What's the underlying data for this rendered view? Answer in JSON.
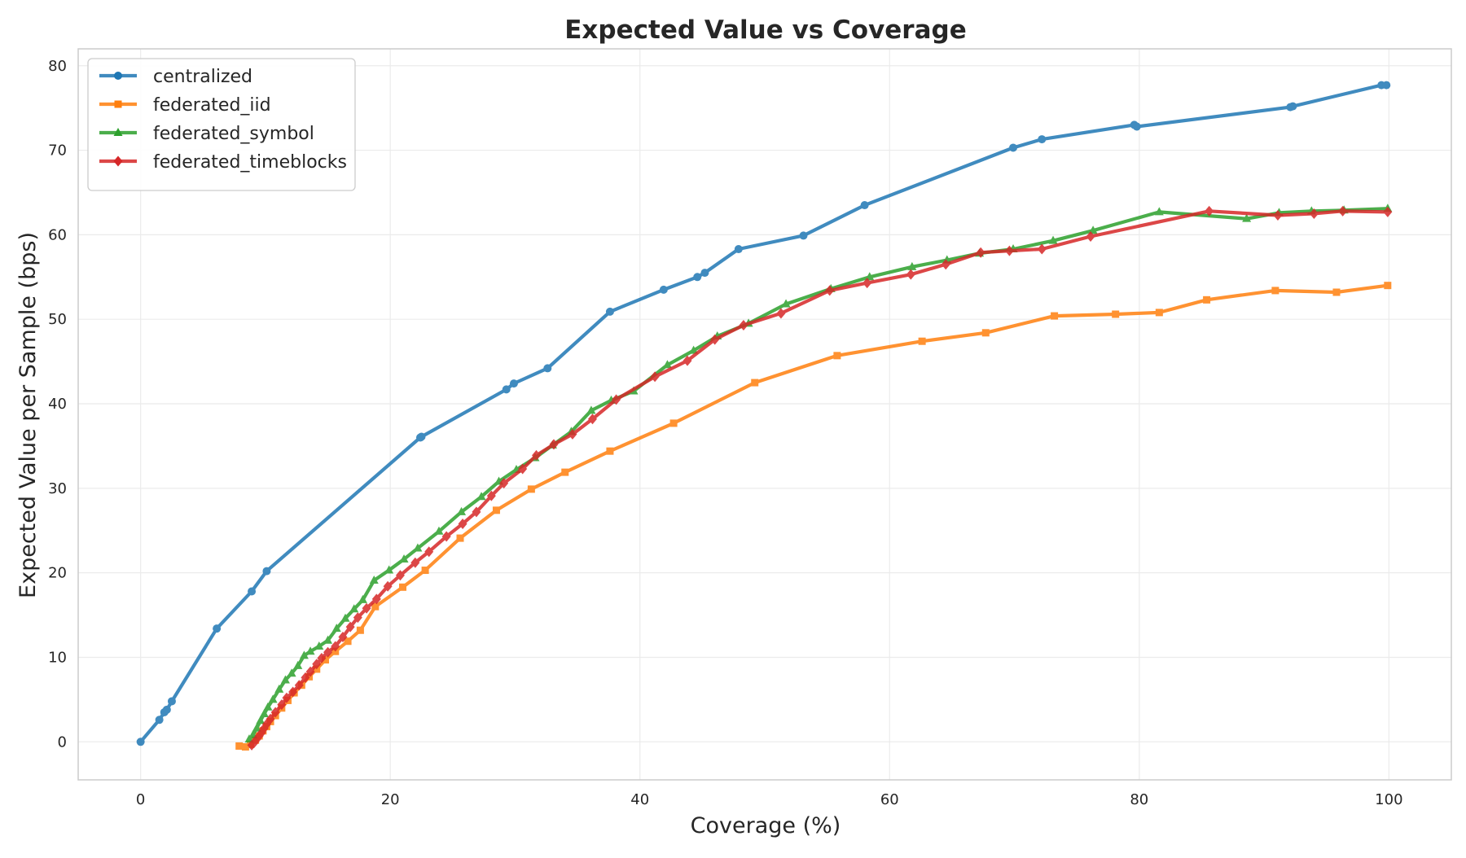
{
  "chart_data": {
    "type": "line",
    "title": "Expected Value vs Coverage",
    "xlabel": "Coverage (%)",
    "ylabel": "Expected Value per Sample (bps)",
    "xlim": [
      -5,
      105
    ],
    "ylim": [
      -4.5,
      82
    ],
    "xticks": [
      0,
      20,
      40,
      60,
      80,
      100
    ],
    "yticks": [
      0,
      10,
      20,
      30,
      40,
      50,
      60,
      70,
      80
    ],
    "grid": true,
    "legend_position": "top-left",
    "series": [
      {
        "name": "centralized",
        "color": "#1f77b4",
        "marker": "circle",
        "x": [
          0,
          1.5,
          1.9,
          2.1,
          2.5,
          6.1,
          8.9,
          10.1,
          22.4,
          22.5,
          29.3,
          29.9,
          32.6,
          37.6,
          41.9,
          44.6,
          45.2,
          47.9,
          53.1,
          58.0,
          69.9,
          72.2,
          79.6,
          79.8,
          92.1,
          92.3,
          99.4,
          99.8
        ],
        "y": [
          0,
          2.6,
          3.5,
          3.8,
          4.8,
          13.4,
          17.8,
          20.2,
          36.0,
          36.1,
          41.7,
          42.4,
          44.2,
          50.9,
          53.5,
          55.0,
          55.5,
          58.3,
          59.9,
          63.5,
          70.3,
          71.3,
          73.0,
          72.8,
          75.1,
          75.2,
          77.7,
          77.7
        ]
      },
      {
        "name": "federated_iid",
        "color": "#ff7f0e",
        "marker": "square",
        "x": [
          7.9,
          8.4,
          8.8,
          9.2,
          9.5,
          9.8,
          10.1,
          10.4,
          10.8,
          11.3,
          11.8,
          12.3,
          12.9,
          13.5,
          14.1,
          14.8,
          15.6,
          16.6,
          17.6,
          18.8,
          21.0,
          22.8,
          25.6,
          28.5,
          31.3,
          34.0,
          37.6,
          42.7,
          49.2,
          55.8,
          62.6,
          67.7,
          73.2,
          78.1,
          81.6,
          85.4,
          90.9,
          95.8,
          99.9
        ],
        "y": [
          -0.5,
          -0.6,
          -0.3,
          0.2,
          0.7,
          1.3,
          1.8,
          2.4,
          3.1,
          4.0,
          4.9,
          5.8,
          6.7,
          7.7,
          8.6,
          9.7,
          10.7,
          11.9,
          13.2,
          16.0,
          18.3,
          20.3,
          24.1,
          27.4,
          29.9,
          31.9,
          34.4,
          37.7,
          42.5,
          45.7,
          47.4,
          48.4,
          50.4,
          50.6,
          50.8,
          52.3,
          53.4,
          53.2,
          54.0
        ]
      },
      {
        "name": "federated_symbol",
        "color": "#2ca02c",
        "marker": "triangle",
        "x": [
          8.7,
          9.0,
          9.3,
          9.6,
          9.9,
          10.2,
          10.6,
          11.1,
          11.6,
          12.1,
          12.6,
          13.1,
          13.6,
          14.3,
          15.0,
          15.7,
          16.4,
          17.1,
          17.8,
          18.7,
          19.9,
          21.1,
          22.2,
          23.9,
          25.7,
          27.3,
          28.7,
          30.1,
          31.6,
          33.0,
          34.5,
          36.1,
          37.7,
          39.5,
          42.2,
          44.3,
          46.2,
          48.7,
          51.7,
          55.3,
          58.4,
          61.8,
          64.6,
          67.2,
          69.9,
          73.1,
          76.3,
          81.6,
          88.6,
          91.2,
          93.8,
          96.4,
          99.9
        ],
        "y": [
          0.3,
          0.8,
          1.6,
          2.5,
          3.3,
          4.1,
          5.0,
          6.2,
          7.3,
          8.1,
          9.0,
          10.2,
          10.7,
          11.3,
          12.0,
          13.4,
          14.6,
          15.7,
          16.8,
          19.1,
          20.3,
          21.6,
          22.9,
          24.9,
          27.2,
          29.0,
          30.8,
          32.2,
          33.6,
          35.1,
          36.7,
          39.2,
          40.4,
          41.5,
          44.6,
          46.3,
          48.0,
          49.5,
          51.8,
          53.6,
          55.0,
          56.2,
          57.0,
          57.8,
          58.3,
          59.3,
          60.5,
          62.7,
          61.9,
          62.6,
          62.8,
          62.9,
          63.1
        ]
      },
      {
        "name": "federated_timeblocks",
        "color": "#d62728",
        "marker": "diamond",
        "x": [
          8.9,
          9.1,
          9.3,
          9.5,
          9.7,
          9.9,
          10.1,
          10.4,
          10.8,
          11.3,
          11.7,
          12.2,
          12.7,
          13.2,
          13.6,
          14.1,
          14.5,
          15.0,
          15.6,
          16.2,
          16.8,
          17.4,
          18.1,
          18.9,
          19.8,
          20.8,
          22.0,
          23.1,
          24.5,
          25.8,
          26.9,
          28.1,
          29.1,
          30.6,
          31.7,
          33.1,
          34.6,
          36.2,
          38.1,
          41.2,
          43.8,
          46.0,
          48.3,
          51.3,
          55.2,
          58.2,
          61.7,
          64.5,
          67.3,
          69.6,
          72.2,
          76.1,
          85.6,
          91.1,
          94.0,
          96.3,
          99.9
        ],
        "y": [
          -0.4,
          -0.1,
          0.3,
          0.7,
          1.1,
          1.6,
          2.1,
          2.7,
          3.5,
          4.4,
          5.2,
          5.9,
          6.7,
          7.6,
          8.3,
          9.2,
          9.9,
          10.6,
          11.3,
          12.4,
          13.6,
          14.7,
          15.8,
          16.9,
          18.4,
          19.7,
          21.2,
          22.5,
          24.3,
          25.8,
          27.2,
          29.1,
          30.6,
          32.3,
          33.9,
          35.2,
          36.4,
          38.2,
          40.5,
          43.2,
          45.1,
          47.6,
          49.3,
          50.7,
          53.4,
          54.3,
          55.3,
          56.5,
          57.9,
          58.1,
          58.3,
          59.8,
          62.8,
          62.3,
          62.5,
          62.8,
          62.7
        ]
      }
    ]
  }
}
